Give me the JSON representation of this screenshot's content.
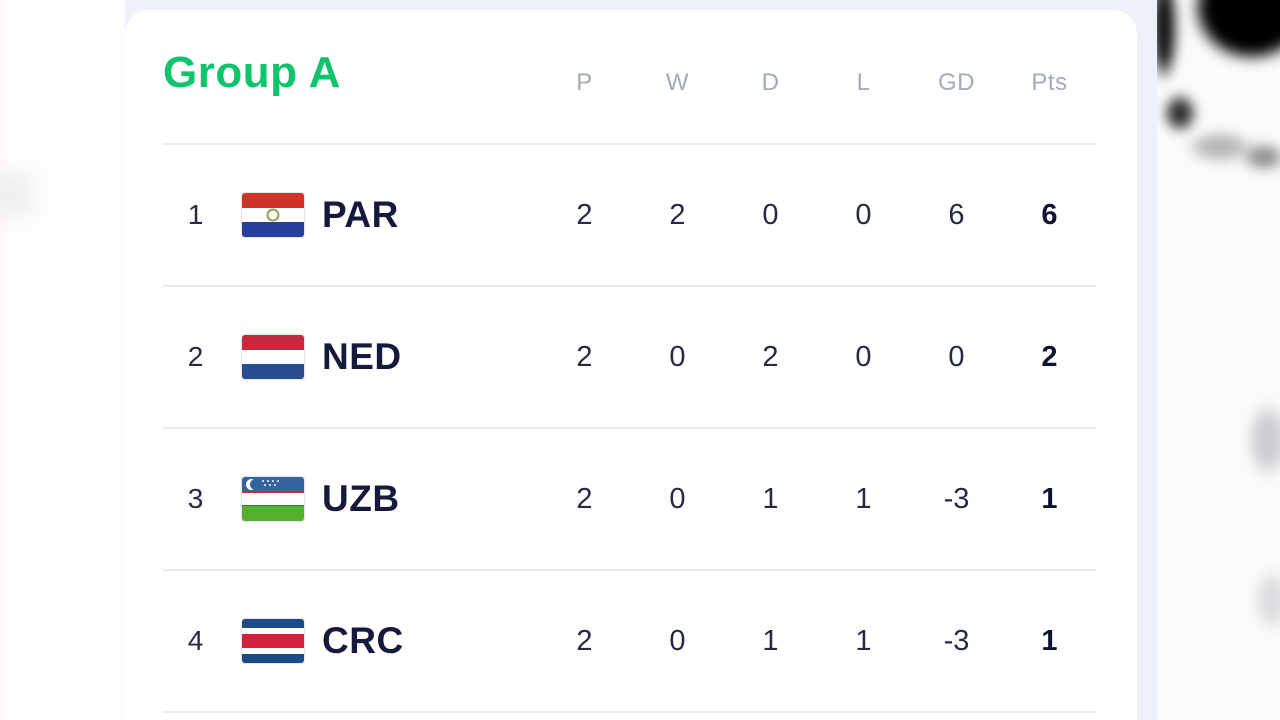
{
  "colors": {
    "accent_green": "#0fc46c",
    "page_background_blue": "#edf1fb",
    "card_white": "#ffffff",
    "text_dark": "#262a47",
    "team_code_navy": "#15193b",
    "column_header_gray": "#a3aaba",
    "separator": "#e9ebf3"
  },
  "standings": {
    "title": "Group A",
    "columns": [
      "P",
      "W",
      "D",
      "L",
      "GD",
      "Pts"
    ],
    "rows": [
      {
        "rank": "1",
        "team": "PAR",
        "flag": "paraguay",
        "p": "2",
        "w": "2",
        "d": "0",
        "l": "0",
        "gd": "6",
        "pts": "6"
      },
      {
        "rank": "2",
        "team": "NED",
        "flag": "netherlands",
        "p": "2",
        "w": "0",
        "d": "2",
        "l": "0",
        "gd": "0",
        "pts": "2"
      },
      {
        "rank": "3",
        "team": "UZB",
        "flag": "uzbekistan",
        "p": "2",
        "w": "0",
        "d": "1",
        "l": "1",
        "gd": "-3",
        "pts": "1"
      },
      {
        "rank": "4",
        "team": "CRC",
        "flag": "costa-rica",
        "p": "2",
        "w": "0",
        "d": "1",
        "l": "1",
        "gd": "-3",
        "pts": "1"
      }
    ]
  }
}
